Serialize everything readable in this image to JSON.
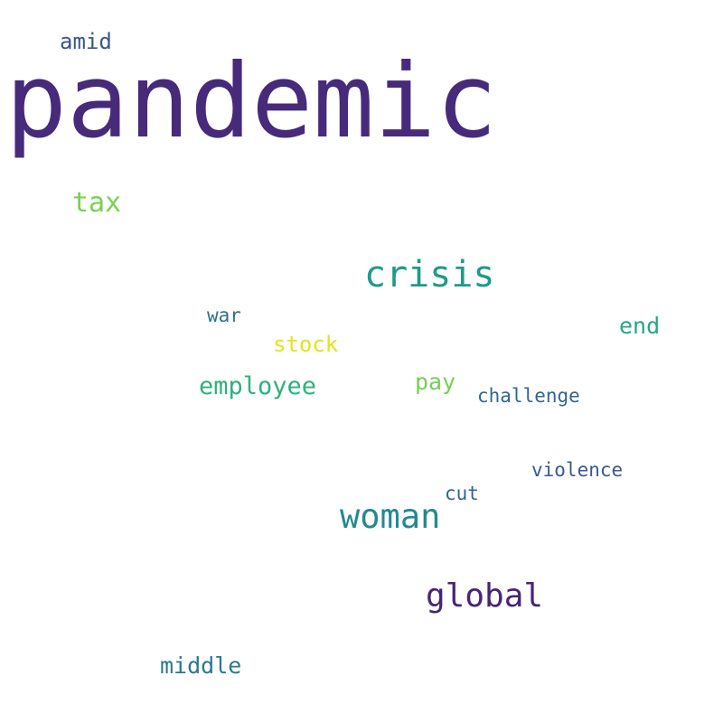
{
  "words": [
    {
      "text": "pandemic",
      "color": "#472a7a"
    },
    {
      "text": "amid",
      "color": "#3b5688"
    },
    {
      "text": "tax",
      "color": "#7ad151"
    },
    {
      "text": "crisis",
      "color": "#1f9a8a"
    },
    {
      "text": "war",
      "color": "#2c728e"
    },
    {
      "text": "end",
      "color": "#22a884"
    },
    {
      "text": "stock",
      "color": "#e3e418"
    },
    {
      "text": "employee",
      "color": "#2db27d"
    },
    {
      "text": "pay",
      "color": "#75d054"
    },
    {
      "text": "challenge",
      "color": "#31668e"
    },
    {
      "text": "violence",
      "color": "#38598c"
    },
    {
      "text": "cut",
      "color": "#33638d"
    },
    {
      "text": "woman",
      "color": "#238a8d"
    },
    {
      "text": "global",
      "color": "#482475"
    },
    {
      "text": "middle",
      "color": "#2a788e"
    }
  ]
}
